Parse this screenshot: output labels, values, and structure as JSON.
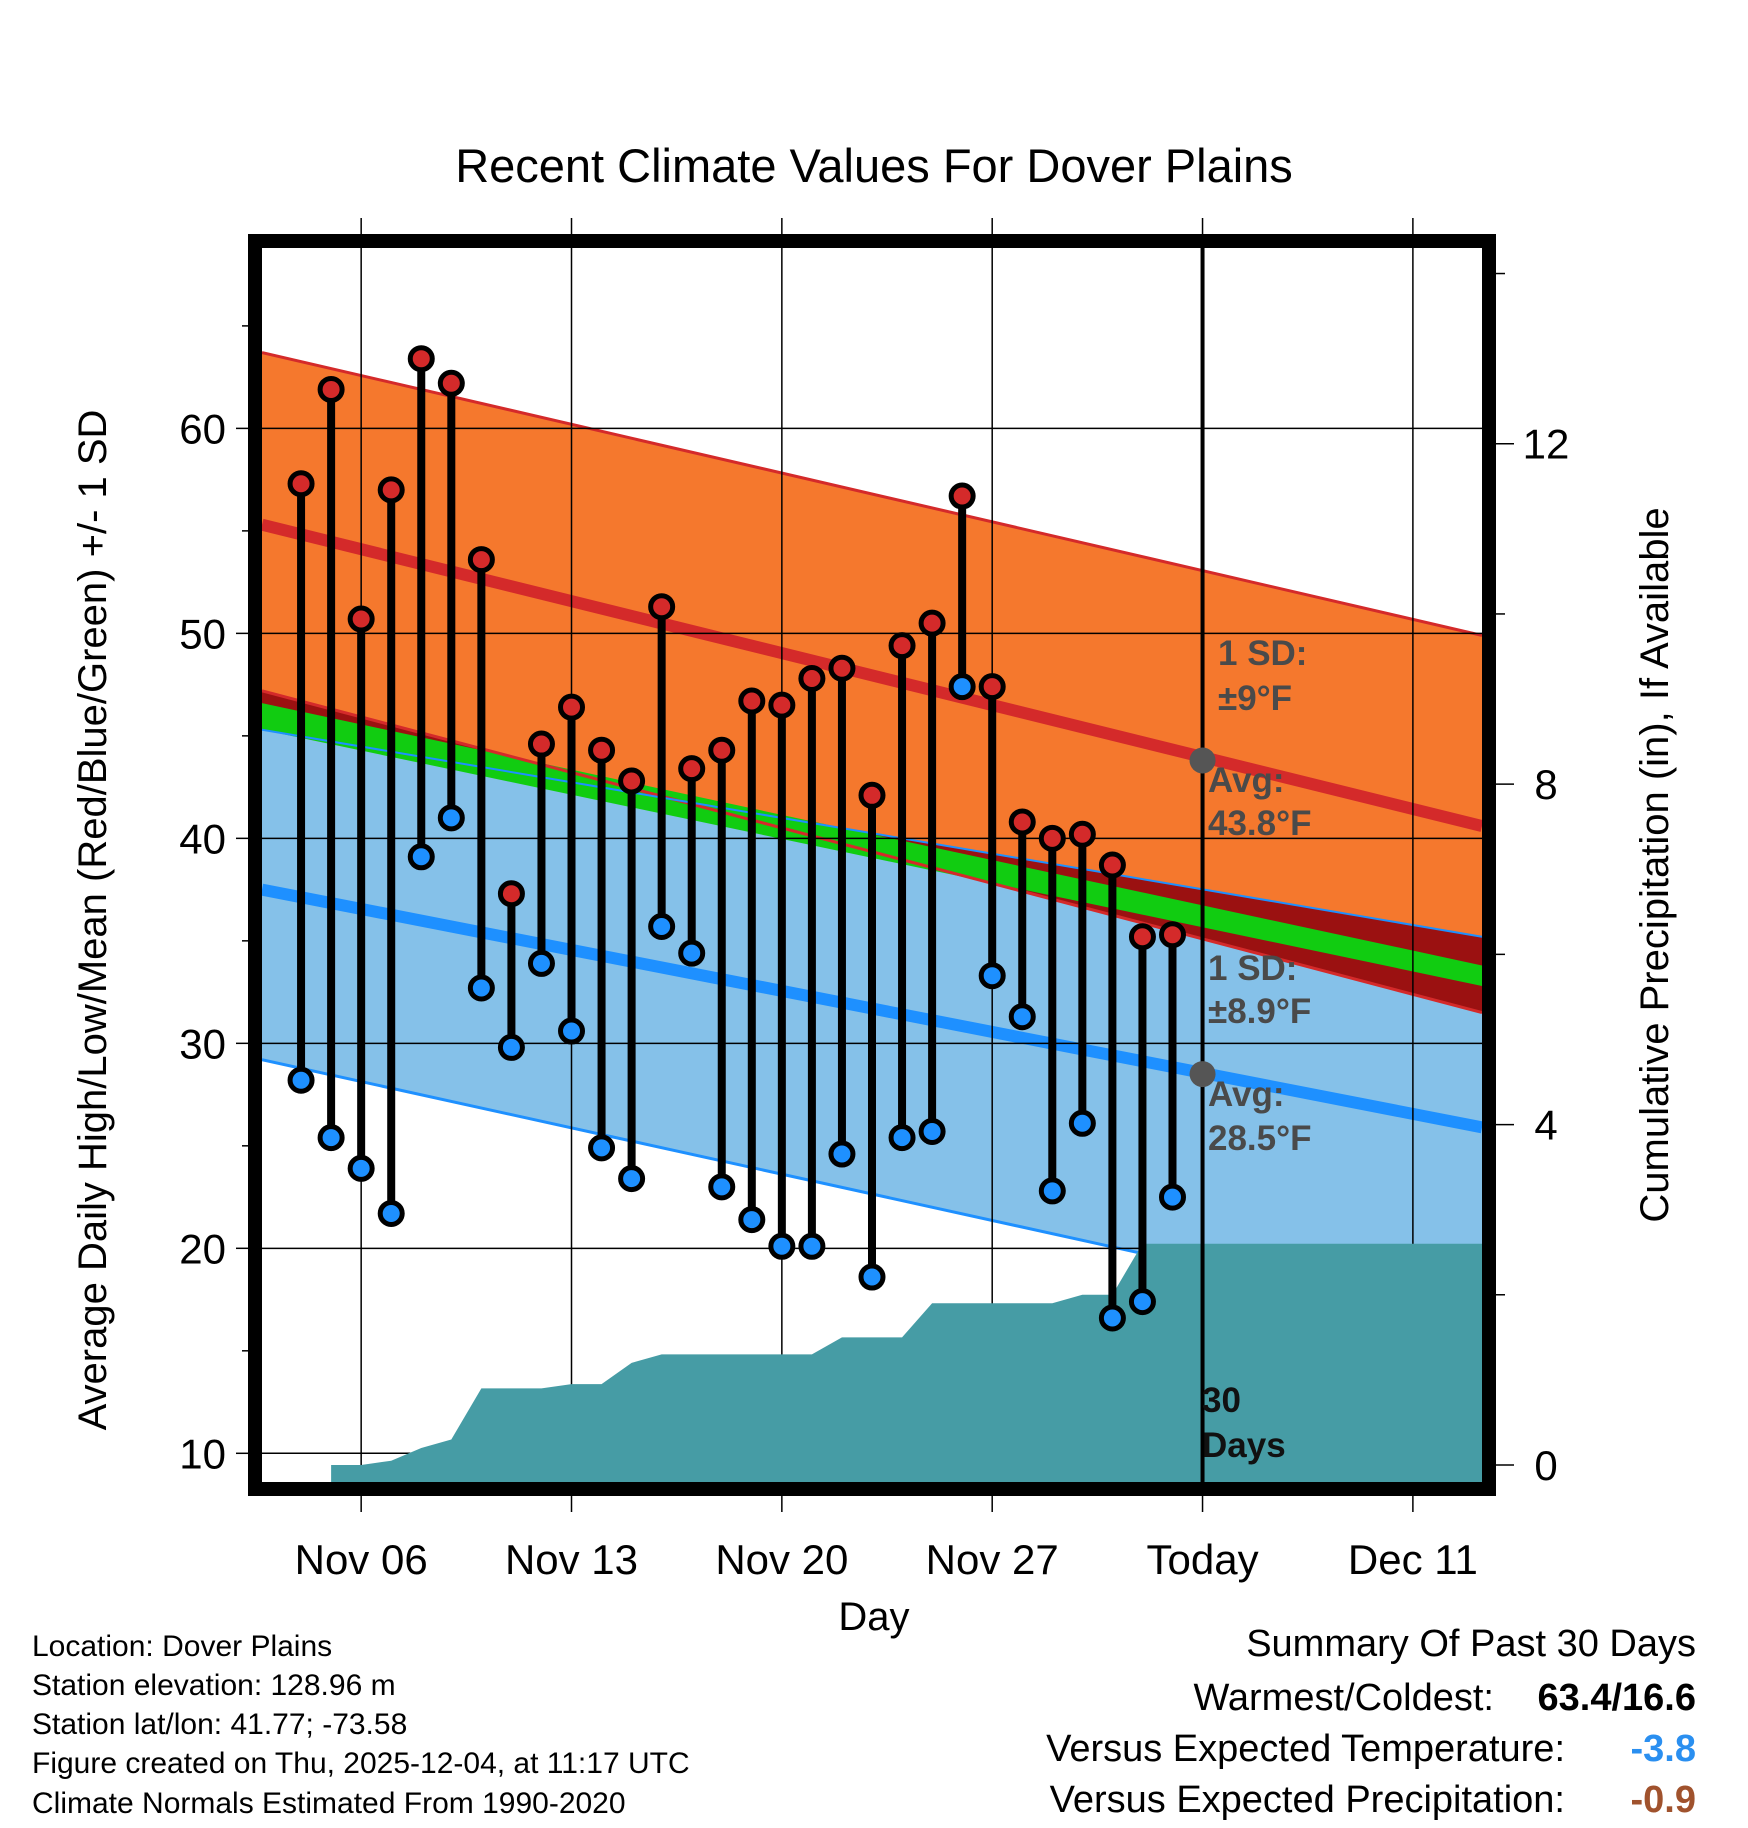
{
  "chart_data": {
    "type": "line",
    "title": "Recent Climate Values For Dover Plains",
    "xlabel": "Day",
    "ylabel": "Average Daily High/Low/Mean (Red/Blue/Green) +/- 1 SD",
    "y2label": "Cumulative Precipitation (in), If Available",
    "x_ticks": [
      {
        "day": 5,
        "label": "Nov 06"
      },
      {
        "day": 12,
        "label": "Nov 13"
      },
      {
        "day": 19,
        "label": "Nov 20"
      },
      {
        "day": 26,
        "label": "Nov 27"
      },
      {
        "day": 33,
        "label": "Today"
      },
      {
        "day": 40,
        "label": "Dec 11"
      }
    ],
    "xlim": [
      1.7,
      42.3
    ],
    "ylim": [
      8.6,
      68.8
    ],
    "y_ticks": [
      10,
      20,
      30,
      40,
      50,
      60
    ],
    "y2lim": [
      -0.2,
      14.3
    ],
    "y2_ticks": [
      0,
      4,
      8,
      12
    ],
    "today_day": 33,
    "normals": {
      "high_avg": {
        "start": 55.3,
        "end": 40.6
      },
      "high_sd_upper": {
        "start": 63.7,
        "end": 49.9
      },
      "high_sd_lower": {
        "start": 47.2,
        "end": 31.5
      },
      "low_avg": {
        "start": 37.5,
        "end": 25.9
      },
      "low_sd_upper": {
        "start": 45.3,
        "end": 35.2
      },
      "low_sd_lower": {
        "start": 29.2,
        "end": 16.1
      },
      "mean_upper": {
        "start": 46.6,
        "end": 33.8
      },
      "mean_lower": {
        "start": 45.3,
        "end": 32.8
      }
    },
    "highs": [
      57.3,
      61.9,
      50.7,
      57.0,
      63.4,
      62.2,
      53.6,
      37.3,
      44.6,
      46.4,
      44.3,
      42.8,
      51.3,
      43.4,
      44.3,
      46.7,
      46.5,
      47.8,
      48.3,
      42.1,
      49.4,
      50.5,
      56.7,
      47.4,
      40.8,
      40.0,
      40.2,
      38.7,
      35.2,
      35.3
    ],
    "lows": [
      28.2,
      25.4,
      23.9,
      21.7,
      39.1,
      41.0,
      32.7,
      29.8,
      33.9,
      30.6,
      24.9,
      23.4,
      35.7,
      34.4,
      23.0,
      21.4,
      20.1,
      20.1,
      24.6,
      18.6,
      25.4,
      25.7,
      47.4,
      33.3,
      31.3,
      22.8,
      26.1,
      16.6,
      17.4,
      22.5
    ],
    "precip_cumulative": [
      {
        "day": 4,
        "value": 0.0
      },
      {
        "day": 5,
        "value": 0.0
      },
      {
        "day": 6,
        "value": 0.05
      },
      {
        "day": 7,
        "value": 0.2
      },
      {
        "day": 8,
        "value": 0.3
      },
      {
        "day": 9,
        "value": 0.9
      },
      {
        "day": 10,
        "value": 0.9
      },
      {
        "day": 11,
        "value": 0.9
      },
      {
        "day": 12,
        "value": 0.95
      },
      {
        "day": 13,
        "value": 0.95
      },
      {
        "day": 14,
        "value": 1.2
      },
      {
        "day": 15,
        "value": 1.3
      },
      {
        "day": 16,
        "value": 1.3
      },
      {
        "day": 17,
        "value": 1.3
      },
      {
        "day": 18,
        "value": 1.3
      },
      {
        "day": 19,
        "value": 1.3
      },
      {
        "day": 20,
        "value": 1.3
      },
      {
        "day": 21,
        "value": 1.5
      },
      {
        "day": 22,
        "value": 1.5
      },
      {
        "day": 23,
        "value": 1.5
      },
      {
        "day": 24,
        "value": 1.9
      },
      {
        "day": 25,
        "value": 1.9
      },
      {
        "day": 26,
        "value": 1.9
      },
      {
        "day": 27,
        "value": 1.9
      },
      {
        "day": 28,
        "value": 1.9
      },
      {
        "day": 29,
        "value": 2.0
      },
      {
        "day": 30,
        "value": 2.0
      },
      {
        "day": 31,
        "value": 2.6
      },
      {
        "day": 42.3,
        "value": 2.6
      }
    ],
    "annotations": {
      "high_sd_line1": "1 SD:",
      "high_sd_line2": "±9°F",
      "high_avg_line1": "Avg:",
      "high_avg_line2": "43.8°F",
      "low_sd_line1": "1 SD:",
      "low_sd_line2": "±8.9°F",
      "low_avg_line1": "Avg:",
      "low_avg_line2": "28.5°F",
      "days_line1": "30",
      "days_line2": "Days"
    },
    "today_high_avg": 43.8,
    "today_low_avg": 28.5
  },
  "footer": {
    "location": "Location: Dover Plains",
    "elevation": "Station elevation: 128.96 m",
    "latlon": "Station lat/lon: 41.77; -73.58",
    "created": "Figure created on Thu, 2025-12-04, at 11:17 UTC",
    "normals": "Climate Normals Estimated From 1990-2020"
  },
  "summary": {
    "heading": "Summary Of Past 30 Days",
    "warmest_label": "Warmest/Coldest:",
    "warmest_value": "63.4/16.6",
    "temp_label": "Versus Expected Temperature:",
    "temp_value": "-3.8",
    "precip_label": "Versus Expected Precipitation:",
    "precip_value": "-0.9"
  },
  "colors": {
    "high_band": "#f5782d",
    "high_line": "#d42a2a",
    "low_band": "#85c1e9",
    "low_line": "#1e90ff",
    "mean_band": "#11cc11",
    "overlap_band": "#9b1111",
    "precip": "#469ca5",
    "today_dot": "#555555",
    "temp_value": "#2a8ff0",
    "precip_value": "#a0522d"
  }
}
